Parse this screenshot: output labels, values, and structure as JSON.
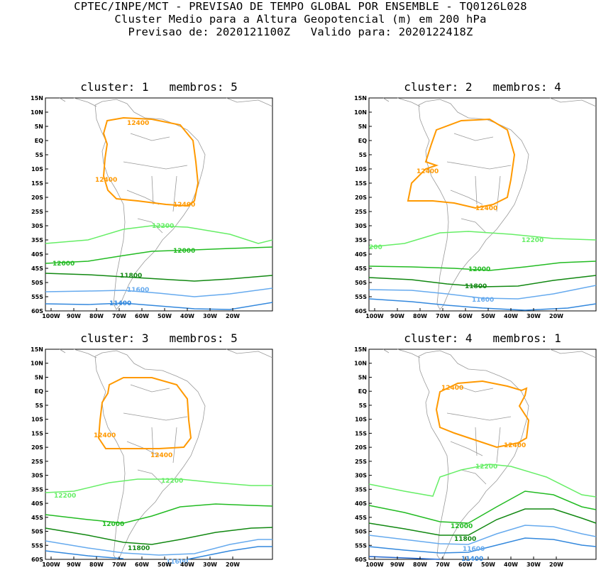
{
  "header": {
    "line1": "CPTEC/INPE/MCT - PREVISAO DE TEMPO GLOBAL POR ENSEMBLE - TQ0126L028",
    "line2": "Cluster Medio para a Altura Geopotencial (m) em 200 hPa",
    "line3": "Previsao de: 2020121100Z   Valido para: 2020122418Z"
  },
  "axes": {
    "lat_labels": [
      "15N",
      "10N",
      "5N",
      "EQ",
      "5S",
      "10S",
      "15S",
      "20S",
      "25S",
      "30S",
      "35S",
      "40S",
      "45S",
      "50S",
      "55S",
      "60S"
    ],
    "lon_labels": [
      "100W",
      "90W",
      "80W",
      "70W",
      "60W",
      "50W",
      "40W",
      "30W",
      "20W"
    ]
  },
  "colors": {
    "c12400": "#ff9900",
    "c12200": "#66ee66",
    "c12000": "#22bb22",
    "c11800": "#118811",
    "c11600": "#66aaee",
    "c11400": "#3388dd",
    "coast": "#999999"
  },
  "panels": [
    {
      "title": "cluster: 1   membros: 5",
      "labels": {
        "a": "12400",
        "b": "12400",
        "c": "12400",
        "d": "12200",
        "e": "12000",
        "f": "12000",
        "g": "11800",
        "h": "11600",
        "i": "11400"
      }
    },
    {
      "title": "cluster: 2   membros: 4",
      "labels": {
        "a": "12400",
        "b": "12400",
        "c": "12200",
        "d": "200",
        "e": "12000",
        "f": "11800",
        "g": "11600"
      }
    },
    {
      "title": "cluster: 3   membros: 5",
      "labels": {
        "a": "12400",
        "b": "12400",
        "c": "12200",
        "d": "12200",
        "e": "12000",
        "f": "11800",
        "g": "11600"
      }
    },
    {
      "title": "cluster: 4   membros: 1",
      "labels": {
        "a": "12400",
        "b": "12400",
        "c": "12200",
        "d": "12000",
        "e": "11800",
        "f": "11600",
        "g": "11400"
      }
    }
  ]
}
